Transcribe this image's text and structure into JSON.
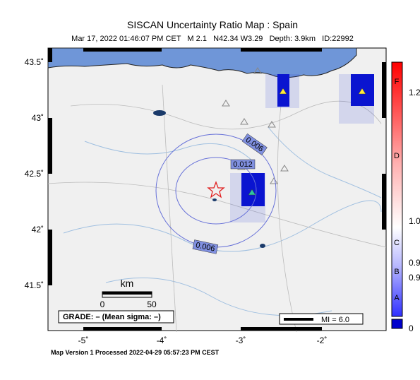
{
  "header": {
    "title": "SISCAN Uncertainty Ratio Map : Spain",
    "subtitle": "Mar 17, 2022 01:46:07 PM CET   M 2.1   N42.34 W3.29   Depth: 3.9km   ID:22992"
  },
  "map": {
    "lon_labels": [
      "-5˚",
      "-4˚",
      "-3˚",
      "-2˚"
    ],
    "lat_labels": [
      "43.5˚",
      "43˚",
      "42.5˚",
      "42˚",
      "41.5˚"
    ],
    "contour_labels": [
      "0.006",
      "0.012",
      "0.006"
    ],
    "scale": {
      "title": "km",
      "start": "0",
      "end": "50"
    },
    "grade": "GRADE: – (Mean sigma: –)",
    "mi": "MI = 6.0"
  },
  "colorbar": {
    "grades": [
      "F",
      "D",
      "C",
      "B",
      "A"
    ],
    "values": [
      "1.2",
      "1.0",
      "0.9",
      "0.9"
    ],
    "bottom": "0"
  },
  "footer": "Map Version 1 Processed 2022-04-29 05:57:23 PM CEST"
}
